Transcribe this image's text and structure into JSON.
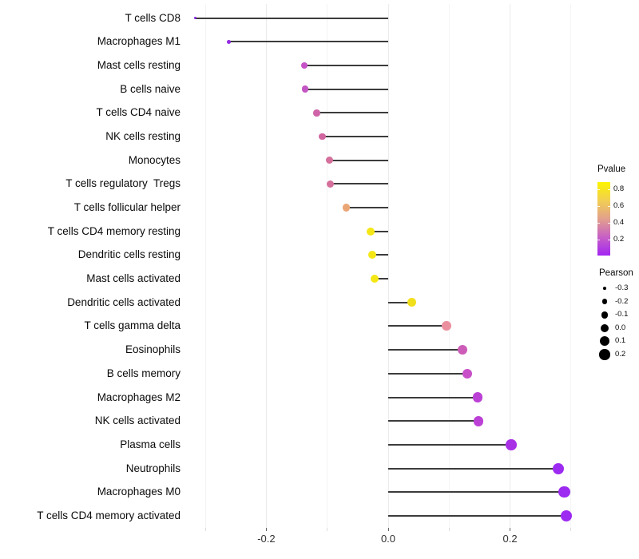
{
  "chart_data": {
    "type": "scatter",
    "variant": "lollipop",
    "title": "",
    "xlabel": "",
    "ylabel": "",
    "rows": [
      {
        "label": "T cells CD8",
        "pearson": -0.317,
        "color": "#8322df"
      },
      {
        "label": "Macrophages M1",
        "pearson": -0.261,
        "color": "#9229e2"
      },
      {
        "label": "Mast cells resting",
        "pearson": -0.138,
        "color": "#c553c8"
      },
      {
        "label": "B cells naive",
        "pearson": -0.136,
        "color": "#c455c4"
      },
      {
        "label": "T cells CD4 naive",
        "pearson": -0.117,
        "color": "#cf63a8"
      },
      {
        "label": "NK cells resting",
        "pearson": -0.108,
        "color": "#d0659f"
      },
      {
        "label": "Monocytes",
        "pearson": -0.096,
        "color": "#d4709b"
      },
      {
        "label": "T cells regulatory  Tregs",
        "pearson": -0.095,
        "color": "#d4709b"
      },
      {
        "label": "T cells follicular helper",
        "pearson": -0.069,
        "color": "#eaa575"
      },
      {
        "label": "T cells CD4 memory resting",
        "pearson": -0.029,
        "color": "#f5e716"
      },
      {
        "label": "Dendritic cells resting",
        "pearson": -0.026,
        "color": "#f5e716"
      },
      {
        "label": "Mast cells activated",
        "pearson": -0.022,
        "color": "#f5e716"
      },
      {
        "label": "Dendritic cells activated",
        "pearson": 0.039,
        "color": "#f2df1b"
      },
      {
        "label": "T cells gamma delta",
        "pearson": 0.096,
        "color": "#ea8f9d"
      },
      {
        "label": "Eosinophils",
        "pearson": 0.122,
        "color": "#cd5cb8"
      },
      {
        "label": "B cells memory",
        "pearson": 0.13,
        "color": "#c94fc9"
      },
      {
        "label": "Macrophages M2",
        "pearson": 0.147,
        "color": "#bb40d5"
      },
      {
        "label": "NK cells activated",
        "pearson": 0.148,
        "color": "#bb40d5"
      },
      {
        "label": "Plasma cells",
        "pearson": 0.202,
        "color": "#a931e5"
      },
      {
        "label": "Neutrophils",
        "pearson": 0.279,
        "color": "#9c2af0"
      },
      {
        "label": "Macrophages M0",
        "pearson": 0.289,
        "color": "#9c2af0"
      },
      {
        "label": "T cells CD4 memory activated",
        "pearson": 0.292,
        "color": "#9c2af0"
      }
    ],
    "x_axis": {
      "range": [
        -0.325,
        0.305
      ],
      "major_ticks": [
        -0.2,
        0.0,
        0.2
      ],
      "tick_labels": [
        "-0.2",
        "0.0",
        "0.2"
      ],
      "minor_gridlines": [
        -0.3,
        -0.1,
        0.1,
        0.3
      ],
      "grid": "vertical-only"
    },
    "legend_pvalue": {
      "title": "Pvalue",
      "tick_labels": [
        "0.8",
        "0.6",
        "0.4",
        "0.2"
      ],
      "tick_values": [
        0.8,
        0.6,
        0.4,
        0.2
      ],
      "gradient_stops": [
        "#fbf500",
        "#f2cf52",
        "#e2a08c",
        "#c75fc6",
        "#a226f3"
      ],
      "high_color": "#fbf500",
      "low_color": "#a226f3",
      "position": "right"
    },
    "legend_pearson": {
      "title": "Pearson",
      "entries": [
        "-0.3",
        "-0.2",
        "-0.1",
        "0.0",
        "0.1",
        "0.2"
      ],
      "values": [
        -0.3,
        -0.2,
        -0.1,
        0.0,
        0.1,
        0.2
      ],
      "dot_color": "#000000",
      "position": "right"
    }
  }
}
